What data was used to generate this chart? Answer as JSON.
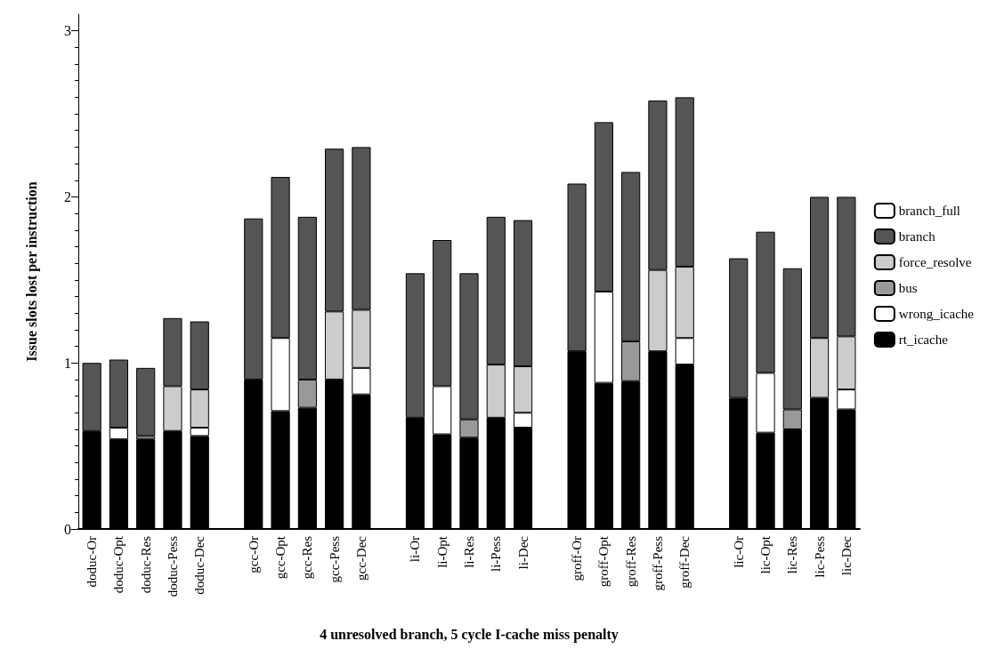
{
  "chart_data": {
    "type": "bar",
    "stacked": true,
    "xlabel": "4 unresolved branch, 5 cycle I-cache miss penalty",
    "ylabel": "Issue slots lost per instruction",
    "categories": [
      "doduc-Or",
      "doduc-Opt",
      "doduc-Res",
      "doduc-Pess",
      "doduc-Dec",
      null,
      "gcc-Or",
      "gcc-Opt",
      "gcc-Res",
      "gcc-Pess",
      "gcc-Dec",
      null,
      "li-Or",
      "li-Opt",
      "li-Res",
      "li-Pess",
      "li-Dec",
      null,
      "groff-Or",
      "groff-Opt",
      "groff-Res",
      "groff-Pess",
      "groff-Dec",
      null,
      "lic-Or",
      "lic-Opt",
      "lic-Res",
      "lic-Pess",
      "lic-Dec"
    ],
    "series": [
      {
        "name": "rt_icache",
        "color": "#000000",
        "values": [
          0.59,
          0.54,
          0.54,
          0.59,
          0.56,
          null,
          0.9,
          0.71,
          0.73,
          0.9,
          0.81,
          null,
          0.67,
          0.57,
          0.55,
          0.67,
          0.61,
          null,
          1.07,
          0.88,
          0.89,
          1.07,
          0.99,
          null,
          0.79,
          0.58,
          0.6,
          0.79,
          0.72
        ]
      },
      {
        "name": "wrong_icache",
        "color": "#ffffff",
        "values": [
          null,
          0.07,
          null,
          null,
          0.05,
          null,
          null,
          0.44,
          null,
          null,
          0.16,
          null,
          null,
          0.29,
          null,
          null,
          0.09,
          null,
          null,
          0.55,
          null,
          null,
          0.16,
          null,
          null,
          0.36,
          null,
          null,
          0.12
        ]
      },
      {
        "name": "bus",
        "color": "#999999",
        "values": [
          null,
          null,
          0.02,
          null,
          null,
          null,
          null,
          null,
          0.17,
          null,
          null,
          null,
          null,
          null,
          0.11,
          null,
          null,
          null,
          null,
          null,
          0.24,
          null,
          null,
          null,
          null,
          null,
          0.12,
          null,
          null
        ]
      },
      {
        "name": "force_resolve",
        "color": "#cccccc",
        "values": [
          null,
          null,
          null,
          0.27,
          0.23,
          null,
          null,
          null,
          null,
          0.41,
          0.35,
          null,
          null,
          null,
          null,
          0.32,
          0.28,
          null,
          null,
          null,
          null,
          0.49,
          0.43,
          null,
          null,
          null,
          null,
          0.36,
          0.32
        ]
      },
      {
        "name": "branch",
        "color": "#555555",
        "values": [
          0.41,
          0.41,
          0.41,
          0.41,
          0.41,
          null,
          0.97,
          0.97,
          0.98,
          0.98,
          0.98,
          null,
          0.87,
          0.88,
          0.88,
          0.89,
          0.88,
          null,
          1.01,
          1.02,
          1.02,
          1.02,
          1.02,
          null,
          0.84,
          0.85,
          0.85,
          0.85,
          0.84
        ]
      },
      {
        "name": "branch_full",
        "color": "#ffffff",
        "values": [
          null,
          null,
          null,
          null,
          null,
          null,
          null,
          null,
          null,
          null,
          null,
          null,
          null,
          null,
          null,
          null,
          null,
          null,
          null,
          null,
          null,
          null,
          null,
          null,
          null,
          null,
          null,
          null,
          null
        ]
      }
    ],
    "ylim": [
      0,
      3.1
    ],
    "yticks": [
      0,
      1,
      2,
      3
    ],
    "legend": "right",
    "grid": false
  }
}
